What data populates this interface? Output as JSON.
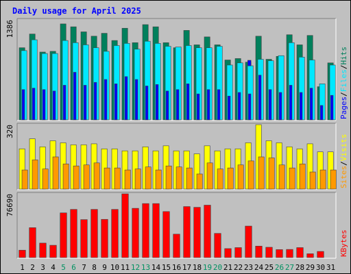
{
  "chart_data": {
    "type": "bar",
    "title": "Daily usage for April 2025",
    "categories": [
      "1",
      "2",
      "3",
      "4",
      "5",
      "6",
      "7",
      "8",
      "9",
      "10",
      "11",
      "12",
      "13",
      "14",
      "15",
      "16",
      "17",
      "18",
      "19",
      "20",
      "21",
      "22",
      "23",
      "24",
      "25",
      "26",
      "27",
      "28",
      "29",
      "30",
      "31"
    ],
    "weekend_days": [
      "5",
      "6",
      "12",
      "13",
      "19",
      "20",
      "26",
      "27"
    ],
    "current_day": "23",
    "panels": [
      {
        "id": "hits",
        "ymax": 1386,
        "ymax_label": "1386",
        "right_label": [
          "Pages",
          "/",
          "Files",
          "/",
          "Hits"
        ],
        "series": [
          {
            "name": "Hits",
            "color": "#00805c",
            "values": [
              1000,
              1190,
              940,
              950,
              1330,
              1290,
              1220,
              1160,
              1200,
              1100,
              1270,
              1070,
              1320,
              1290,
              1070,
              1000,
              1240,
              1040,
              1150,
              1040,
              830,
              850,
              800,
              1160,
              840,
              880,
              1180,
              1040,
              1170,
              460,
              790
            ]
          },
          {
            "name": "Files",
            "color": "#00e8ff",
            "values": [
              960,
              1110,
              920,
              920,
              1100,
              1070,
              1040,
              1000,
              950,
              1030,
              1060,
              980,
              1090,
              1060,
              1020,
              1010,
              1030,
              1000,
              1000,
              1020,
              760,
              790,
              750,
              840,
              820,
              890,
              1070,
              870,
              830,
              500,
              760
            ]
          },
          {
            "name": "Pages",
            "color": "#0000ff",
            "values": [
              420,
              440,
              420,
              400,
              480,
              660,
              480,
              520,
              560,
              500,
              600,
              560,
              470,
              490,
              400,
              420,
              500,
              360,
              420,
              420,
              330,
              380,
              360,
              620,
              420,
              380,
              480,
              380,
              440,
              200,
              340
            ]
          }
        ]
      },
      {
        "id": "visits",
        "ymax": 320,
        "ymax_label": "320",
        "right_label": [
          "Sites",
          "/",
          "Visits"
        ],
        "series": [
          {
            "name": "Visits",
            "color": "#ffff00",
            "values": [
              200,
              250,
              210,
              240,
              230,
              220,
              220,
              225,
              200,
              200,
              190,
              190,
              210,
              190,
              215,
              190,
              190,
              175,
              215,
              190,
              200,
              200,
              230,
              320,
              240,
              230,
              210,
              200,
              225,
              185,
              185
            ]
          },
          {
            "name": "Sites",
            "color": "#ff9900",
            "values": [
              95,
              145,
              100,
              160,
              125,
              115,
              120,
              130,
              105,
              105,
              95,
              100,
              110,
              95,
              115,
              110,
              105,
              75,
              130,
              100,
              105,
              120,
              140,
              160,
              155,
              120,
              105,
              125,
              85,
              95,
              95
            ]
          }
        ]
      },
      {
        "id": "kbytes",
        "ymax": 76690,
        "ymax_label": "76690",
        "right_label": [
          "KBytes"
        ],
        "series": [
          {
            "name": "KBytes",
            "color": "#ff0000",
            "values": [
              8900,
              36000,
              17400,
              14800,
              53800,
              58000,
              45700,
              58000,
              46000,
              58000,
              76690,
              59300,
              65000,
              65000,
              55400,
              28200,
              61400,
              60500,
              63100,
              29100,
              10800,
              12000,
              37900,
              13800,
              12400,
              9600,
              9800,
              12000,
              4600,
              7400,
              0
            ]
          }
        ]
      }
    ],
    "colors": {
      "background": "#c0c0c0",
      "title": "#0000ff",
      "label_default": "#000000",
      "label_weekend": "#009060",
      "hits": "#00805c",
      "files": "#00e8ff",
      "pages": "#0000ff",
      "visits": "#ffff00",
      "sites": "#ff9900",
      "kbytes": "#ff0000",
      "current_day": "#0000ff"
    }
  }
}
